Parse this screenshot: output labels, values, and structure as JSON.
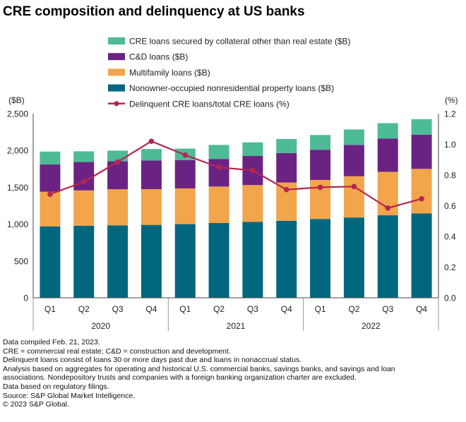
{
  "chart_data": {
    "type": "bar",
    "title": "CRE composition and delinquency at US banks",
    "ylabel": "($B)",
    "y2label": "(%)",
    "ylim": [
      0,
      2500
    ],
    "y2lim": [
      0,
      1.2
    ],
    "yticks": [
      "0",
      "500",
      "1,000",
      "1,500",
      "2,000",
      "2,500"
    ],
    "y2ticks": [
      "0.0",
      "0.2",
      "0.4",
      "0.6",
      "0.8",
      "1.0",
      "1.2"
    ],
    "categories": [
      "Q1",
      "Q2",
      "Q3",
      "Q4",
      "Q1",
      "Q2",
      "Q3",
      "Q4",
      "Q1",
      "Q2",
      "Q3",
      "Q4"
    ],
    "years": [
      "2020",
      "2021",
      "2022"
    ],
    "series": [
      {
        "name": "Nonowner-occupied nonresidential property loans ($B)",
        "color": "#00677f",
        "values": [
          970,
          978,
          983,
          990,
          1000,
          1015,
          1030,
          1045,
          1070,
          1090,
          1120,
          1145
        ]
      },
      {
        "name": "Multifamily loans ($B)",
        "color": "#f2a54b",
        "values": [
          470,
          480,
          490,
          485,
          485,
          495,
          500,
          520,
          530,
          560,
          590,
          605
        ]
      },
      {
        "name": "C&D loans ($B)",
        "color": "#6a2383",
        "values": [
          370,
          385,
          380,
          390,
          385,
          375,
          395,
          400,
          410,
          425,
          450,
          465
        ]
      },
      {
        "name": "CRE loans secured by collateral other than real estate ($B)",
        "color": "#4dbb95",
        "values": [
          175,
          145,
          145,
          155,
          155,
          190,
          185,
          190,
          200,
          210,
          210,
          210
        ]
      }
    ],
    "line": {
      "name": "Delinquent CRE loans/total CRE loans (%)",
      "color": "#b5264f",
      "values": [
        0.675,
        0.755,
        0.885,
        1.02,
        0.93,
        0.85,
        0.83,
        0.705,
        0.72,
        0.725,
        0.585,
        0.645
      ]
    },
    "legend_order": [
      3,
      2,
      1,
      0,
      "line"
    ]
  },
  "notes": [
    "Data compiled Feb. 21, 2023.",
    "CRE = commercial real estate; C&D = construction and development.",
    "Delinquent loans consist of loans 30 or more days past due and loans in nonaccrual status.",
    "Analysis based on aggregates for operating and historical U.S. commercial banks, savings banks, and savings and loan",
    "associations. Nondepository trusts and companies with a foreign banking organization charter are excluded.",
    "Data based on regulatory filings.",
    "Source: S&P Global Market Intelligence.",
    "© 2023 S&P Global."
  ]
}
